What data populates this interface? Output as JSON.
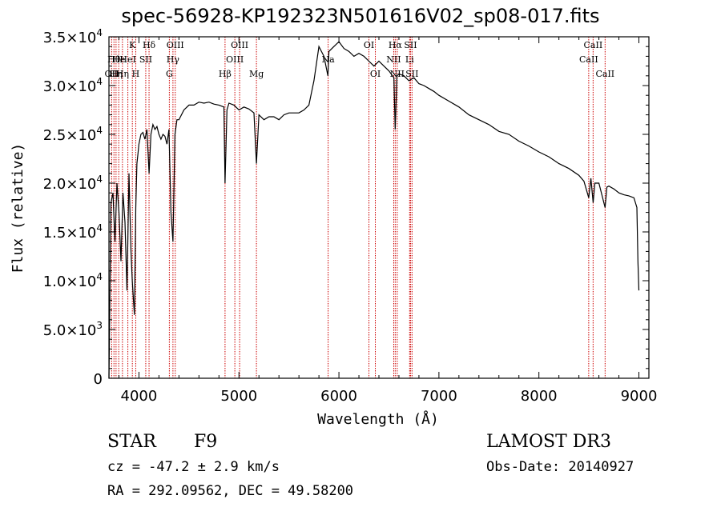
{
  "chart_data": {
    "type": "line",
    "title": "spec-56928-KP192323N501616V02_sp08-017.fits",
    "xlabel": "Wavelength (Å)",
    "ylabel": "Flux (relative)",
    "xlim": [
      3700,
      9100
    ],
    "ylim": [
      0,
      35000
    ],
    "x_ticks": [
      {
        "value": 4000,
        "label": "4000"
      },
      {
        "value": 5000,
        "label": "5000"
      },
      {
        "value": 6000,
        "label": "6000"
      },
      {
        "value": 7000,
        "label": "7000"
      },
      {
        "value": 8000,
        "label": "8000"
      },
      {
        "value": 9000,
        "label": "9000"
      }
    ],
    "y_ticks": [
      {
        "value": 0,
        "mant": "0",
        "exp": ""
      },
      {
        "value": 5000,
        "mant": "5.0×10",
        "exp": "3"
      },
      {
        "value": 10000,
        "mant": "1.0×10",
        "exp": "4"
      },
      {
        "value": 15000,
        "mant": "1.5×10",
        "exp": "4"
      },
      {
        "value": 20000,
        "mant": "2.0×10",
        "exp": "4"
      },
      {
        "value": 25000,
        "mant": "2.5×10",
        "exp": "4"
      },
      {
        "value": 30000,
        "mant": "3.0×10",
        "exp": "4"
      },
      {
        "value": 35000,
        "mant": "3.5×10",
        "exp": "4"
      }
    ],
    "series": [
      {
        "name": "spectrum",
        "x": [
          3700,
          3720,
          3740,
          3760,
          3780,
          3800,
          3820,
          3840,
          3860,
          3880,
          3900,
          3920,
          3933,
          3945,
          3955,
          3968,
          3980,
          3990,
          4000,
          4020,
          4040,
          4060,
          4080,
          4101,
          4120,
          4140,
          4160,
          4180,
          4200,
          4220,
          4240,
          4260,
          4280,
          4300,
          4320,
          4340,
          4360,
          4380,
          4400,
          4450,
          4500,
          4550,
          4600,
          4650,
          4700,
          4750,
          4800,
          4850,
          4861,
          4880,
          4900,
          4950,
          5000,
          5050,
          5100,
          5150,
          5175,
          5200,
          5250,
          5300,
          5350,
          5400,
          5450,
          5500,
          5550,
          5600,
          5650,
          5700,
          5750,
          5800,
          5850,
          5890,
          5900,
          5950,
          6000,
          6050,
          6100,
          6150,
          6200,
          6250,
          6300,
          6350,
          6400,
          6450,
          6500,
          6550,
          6563,
          6580,
          6600,
          6650,
          6700,
          6750,
          6800,
          6850,
          6900,
          6950,
          7000,
          7100,
          7200,
          7300,
          7400,
          7500,
          7600,
          7700,
          7800,
          7900,
          8000,
          8100,
          8200,
          8300,
          8400,
          8450,
          8498,
          8520,
          8542,
          8560,
          8600,
          8662,
          8680,
          8700,
          8750,
          8800,
          8850,
          8900,
          8950,
          8980,
          8990,
          9000
        ],
        "y": [
          0,
          18000,
          19000,
          14000,
          20000,
          17000,
          12000,
          19000,
          16000,
          9000,
          21000,
          13000,
          10000,
          8000,
          6500,
          17500,
          22000,
          23000,
          24000,
          25000,
          25200,
          24500,
          25500,
          21000,
          25000,
          26000,
          25500,
          25800,
          25000,
          24500,
          25000,
          24800,
          24000,
          25500,
          17000,
          14000,
          25000,
          26500,
          26500,
          27500,
          28000,
          28000,
          28300,
          28200,
          28300,
          28100,
          28000,
          27800,
          20000,
          27500,
          28200,
          28000,
          27500,
          27800,
          27600,
          27200,
          22000,
          27000,
          26500,
          26800,
          26800,
          26500,
          27000,
          27200,
          27200,
          27200,
          27500,
          28000,
          30500,
          34000,
          33000,
          31000,
          33500,
          34000,
          34500,
          33800,
          33500,
          33000,
          33300,
          33000,
          32500,
          32000,
          32500,
          32000,
          31500,
          30800,
          25500,
          31000,
          31200,
          31000,
          30500,
          30800,
          30200,
          30000,
          29700,
          29400,
          29000,
          28400,
          27800,
          27000,
          26500,
          26000,
          25300,
          25000,
          24300,
          23800,
          23200,
          22700,
          22000,
          21500,
          20800,
          20200,
          18500,
          20500,
          18000,
          20000,
          20000,
          17500,
          19600,
          19700,
          19400,
          19000,
          18800,
          18700,
          18500,
          17500,
          12000,
          9000
        ]
      }
    ],
    "lines": [
      {
        "x": 3727,
        "label": "OII",
        "row": 2
      },
      {
        "x": 3750,
        "label": "Hθ",
        "row": 1
      },
      {
        "x": 3771,
        "label": "Hη",
        "row": 2
      },
      {
        "x": 3798,
        "label": "He",
        "row": 1
      },
      {
        "x": 3835,
        "label": "Hη",
        "row": 2
      },
      {
        "x": 3889,
        "label": "HeI",
        "row": 1
      },
      {
        "x": 3934,
        "label": "K",
        "row": 0
      },
      {
        "x": 3968,
        "label": "H",
        "row": 2
      },
      {
        "x": 4068,
        "label": "SII",
        "row": 1
      },
      {
        "x": 4101,
        "label": "Hδ",
        "row": 0
      },
      {
        "x": 4304,
        "label": "G",
        "row": 2
      },
      {
        "x": 4340,
        "label": "Hγ",
        "row": 1
      },
      {
        "x": 4363,
        "label": "OIII",
        "row": 0
      },
      {
        "x": 4861,
        "label": "Hβ",
        "row": 2
      },
      {
        "x": 4959,
        "label": "OIII",
        "row": 1
      },
      {
        "x": 5007,
        "label": "OIII",
        "row": 0
      },
      {
        "x": 5175,
        "label": "Mg",
        "row": 2
      },
      {
        "x": 5892,
        "label": "Na",
        "row": 1
      },
      {
        "x": 6300,
        "label": "OI",
        "row": 0
      },
      {
        "x": 6364,
        "label": "OI",
        "row": 2
      },
      {
        "x": 6548,
        "label": "NII",
        "row": 1
      },
      {
        "x": 6563,
        "label": "Hα",
        "row": 0
      },
      {
        "x": 6583,
        "label": "NII",
        "row": 2
      },
      {
        "x": 6707,
        "label": "Li",
        "row": 1
      },
      {
        "x": 6716,
        "label": "SII",
        "row": 0
      },
      {
        "x": 6731,
        "label": "SII",
        "row": 2
      },
      {
        "x": 8498,
        "label": "CaII",
        "row": 1
      },
      {
        "x": 8542,
        "label": "CaII",
        "row": 0
      },
      {
        "x": 8662,
        "label": "CaII",
        "row": 2
      }
    ],
    "line_color": "#cc0000"
  },
  "info": {
    "class_label": "STAR",
    "subclass": "F9",
    "survey": "LAMOST DR3",
    "cz": "cz = -47.2 ± 2.9 km/s",
    "obs_date": "Obs-Date: 20140927",
    "coords": "RA = 292.09562, DEC =  49.58200"
  }
}
